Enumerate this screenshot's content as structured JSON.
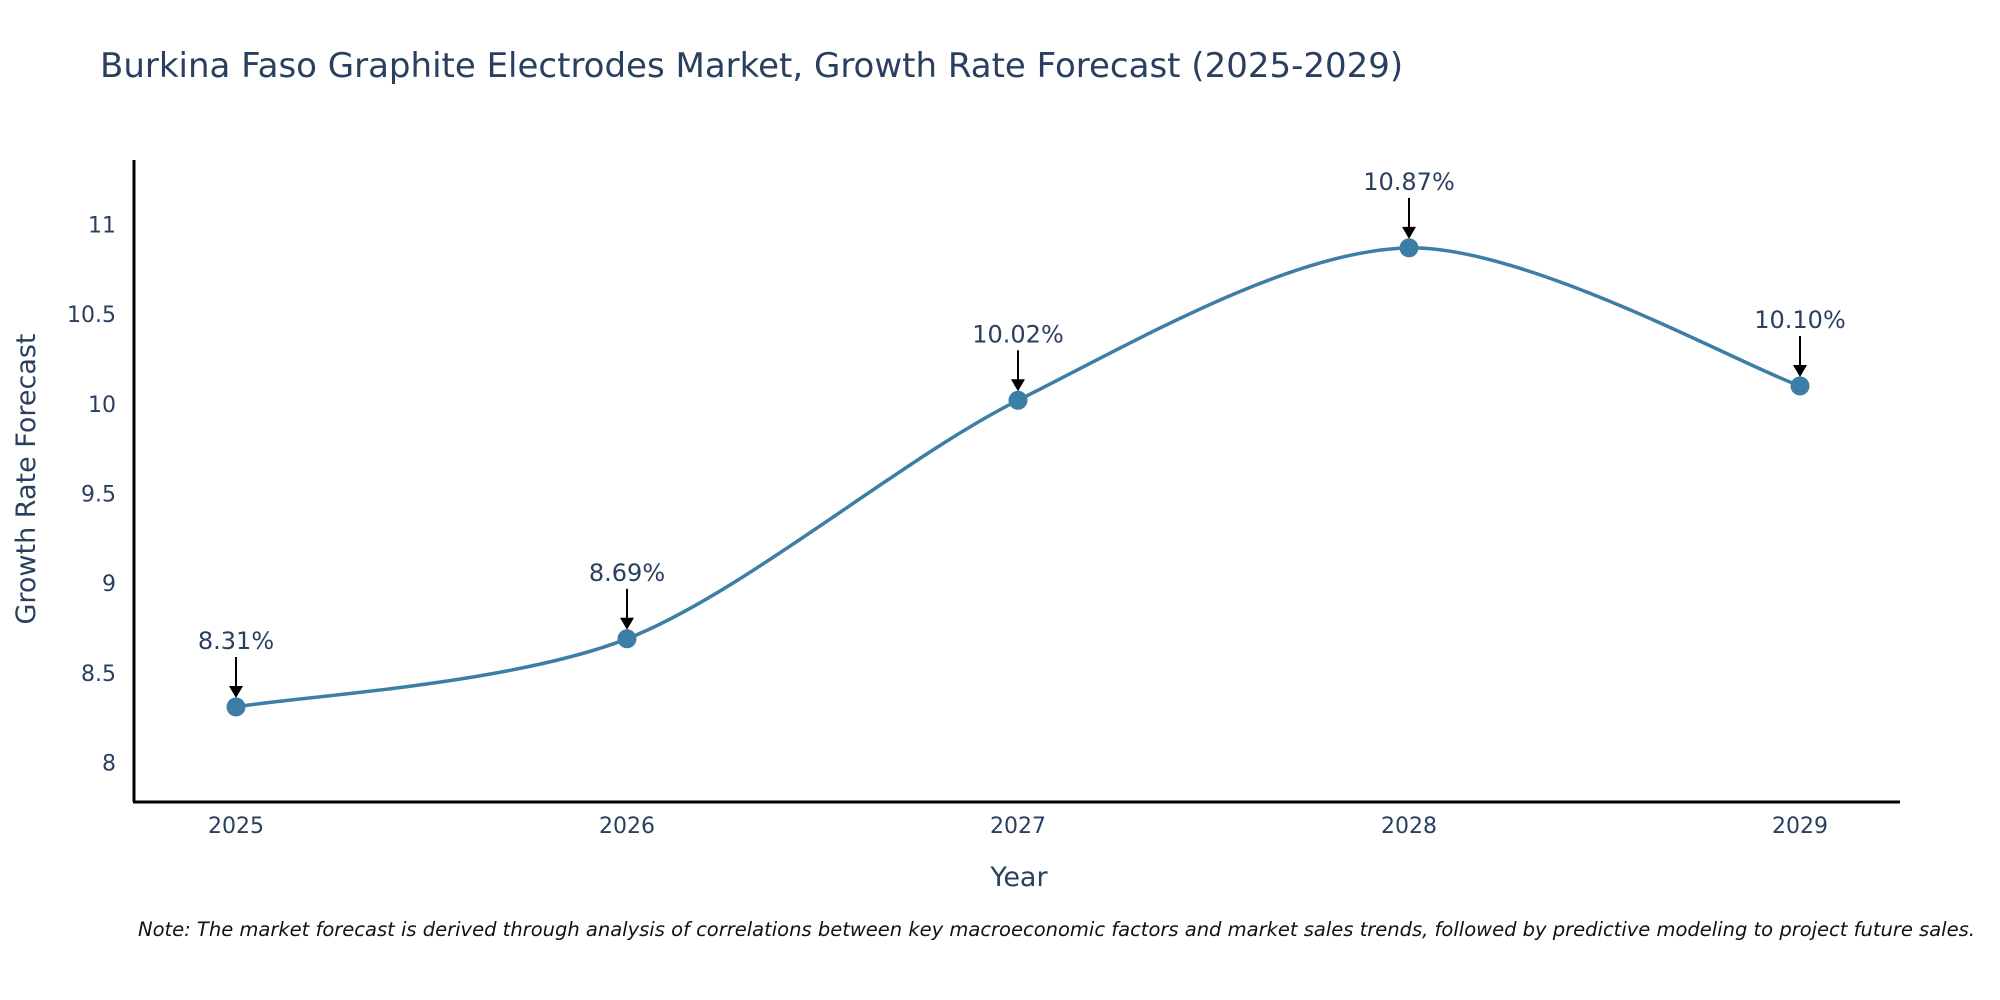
{
  "chart_data": {
    "type": "line",
    "title": "Burkina Faso Graphite Electrodes Market, Growth Rate Forecast (2025-2029)",
    "xlabel": "Year",
    "ylabel": "Growth Rate Forecast",
    "categories": [
      "2025",
      "2026",
      "2027",
      "2028",
      "2029"
    ],
    "values": [
      8.31,
      8.69,
      10.02,
      10.87,
      10.1
    ],
    "data_labels": [
      "8.31%",
      "8.69%",
      "10.02%",
      "10.87%",
      "10.10%"
    ],
    "y_ticks": [
      8,
      8.5,
      9,
      9.5,
      10,
      10.5,
      11
    ],
    "y_tick_labels": [
      "8",
      "8.5",
      "9",
      "9.5",
      "10",
      "10.5",
      "11"
    ],
    "ylim": [
      7.78,
      11.36
    ],
    "line_color": "#3d7ea6",
    "marker_color": "#3d7ea6",
    "grid": false,
    "legend": "none"
  },
  "note": "Note: The market forecast is derived through analysis of correlations between key macroeconomic factors and market sales trends, followed by predictive modeling to project future sales."
}
